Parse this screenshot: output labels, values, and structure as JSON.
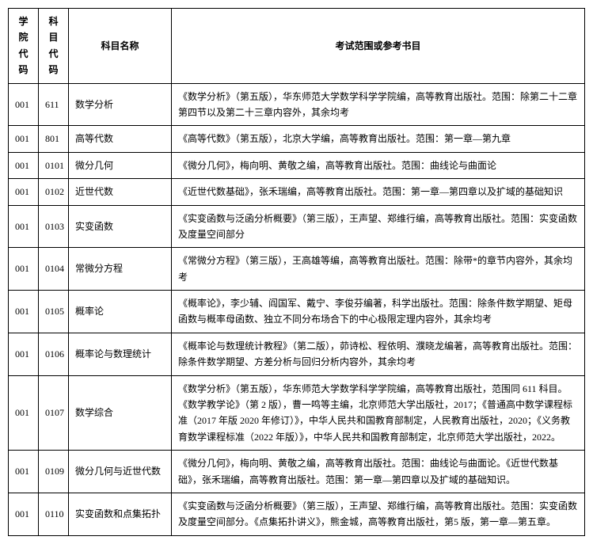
{
  "table": {
    "columns": [
      "学院代码",
      "科目代码",
      "科目名称",
      "考试范围或参考书目"
    ],
    "column_widths": [
      "38px",
      "38px",
      "130px",
      "auto"
    ],
    "border_color": "#000000",
    "background_color": "#ffffff",
    "font_family": "SimSun",
    "header_fontsize": 12,
    "cell_fontsize": 12,
    "rows": [
      {
        "college_code": "001",
        "subject_code": "611",
        "subject_name": "数学分析",
        "reference": "《数学分析》（第五版），华东师范大学数学科学学院编，高等教育出版社。范围：除第二十二章第四节以及第二十三章内容外，其余均考"
      },
      {
        "college_code": "001",
        "subject_code": "801",
        "subject_name": "高等代数",
        "reference": "《高等代数》（第五版），北京大学编，高等教育出版社。范围：第一章—第九章"
      },
      {
        "college_code": "001",
        "subject_code": "0101",
        "subject_name": "微分几何",
        "reference": "《微分几何》，梅向明、黄敬之编，高等教育出版社。范围：曲线论与曲面论"
      },
      {
        "college_code": "001",
        "subject_code": "0102",
        "subject_name": "近世代数",
        "reference": "《近世代数基础》，张禾瑞编，高等教育出版社。范围：第一章—第四章以及扩域的基础知识"
      },
      {
        "college_code": "001",
        "subject_code": "0103",
        "subject_name": "实变函数",
        "reference": "《实变函数与泛函分析概要》（第三版），王声望、郑维行编，高等教育出版社。范围：实变函数及度量空间部分"
      },
      {
        "college_code": "001",
        "subject_code": "0104",
        "subject_name": "常微分方程",
        "reference": "《常微分方程》（第三版），王高雄等编，高等教育出版社。范围：除带*的章节内容外，其余均考"
      },
      {
        "college_code": "001",
        "subject_code": "0105",
        "subject_name": "概率论",
        "reference": "《概率论》，李少辅、阎国军、戴宁、李俊芬编著，科学出版社。范围：除条件数学期望、矩母函数与概率母函数、独立不同分布场合下的中心极限定理内容外，其余均考"
      },
      {
        "college_code": "001",
        "subject_code": "0106",
        "subject_name": "概率论与数理统计",
        "reference": "《概率论与数理统计教程》（第二版），茆诗松、程依明、濮晓龙编著，高等教育出版社。范围：除条件数学期望、方差分析与回归分析内容外，其余均考"
      },
      {
        "college_code": "001",
        "subject_code": "0107",
        "subject_name": "数学综合",
        "reference": "《数学分析》（第五版），华东师范大学数学科学学院编，高等教育出版社，范围同 611 科目。《数学教学论》（第 2 版），曹一鸣等主编，北京师范大学出版社，2017；《普通高中数学课程标准（2017 年版 2020 年修订）》，中华人民共和国教育部制定，人民教育出版社，2020；《义务教育数学课程标准（2022 年版）》，中华人民共和国教育部制定，北京师范大学出版社，2022。"
      },
      {
        "college_code": "001",
        "subject_code": "0109",
        "subject_name": "微分几何与近世代数",
        "reference": "《微分几何》，梅向明、黄敬之编，高等教育出版社。范围：曲线论与曲面论。《近世代数基础》，张禾瑞编，高等教育出版社。范围：第一章—第四章以及扩域的基础知识。"
      },
      {
        "college_code": "001",
        "subject_code": "0110",
        "subject_name": "实变函数和点集拓扑",
        "reference": "《实变函数与泛函分析概要》（第三版），王声望、郑维行编，高等教育出版社。范围：实变函数及度量空间部分。《点集拓扑讲义》，熊金城，高等教育出版社，第5 版，第一章—第五章。"
      }
    ]
  }
}
